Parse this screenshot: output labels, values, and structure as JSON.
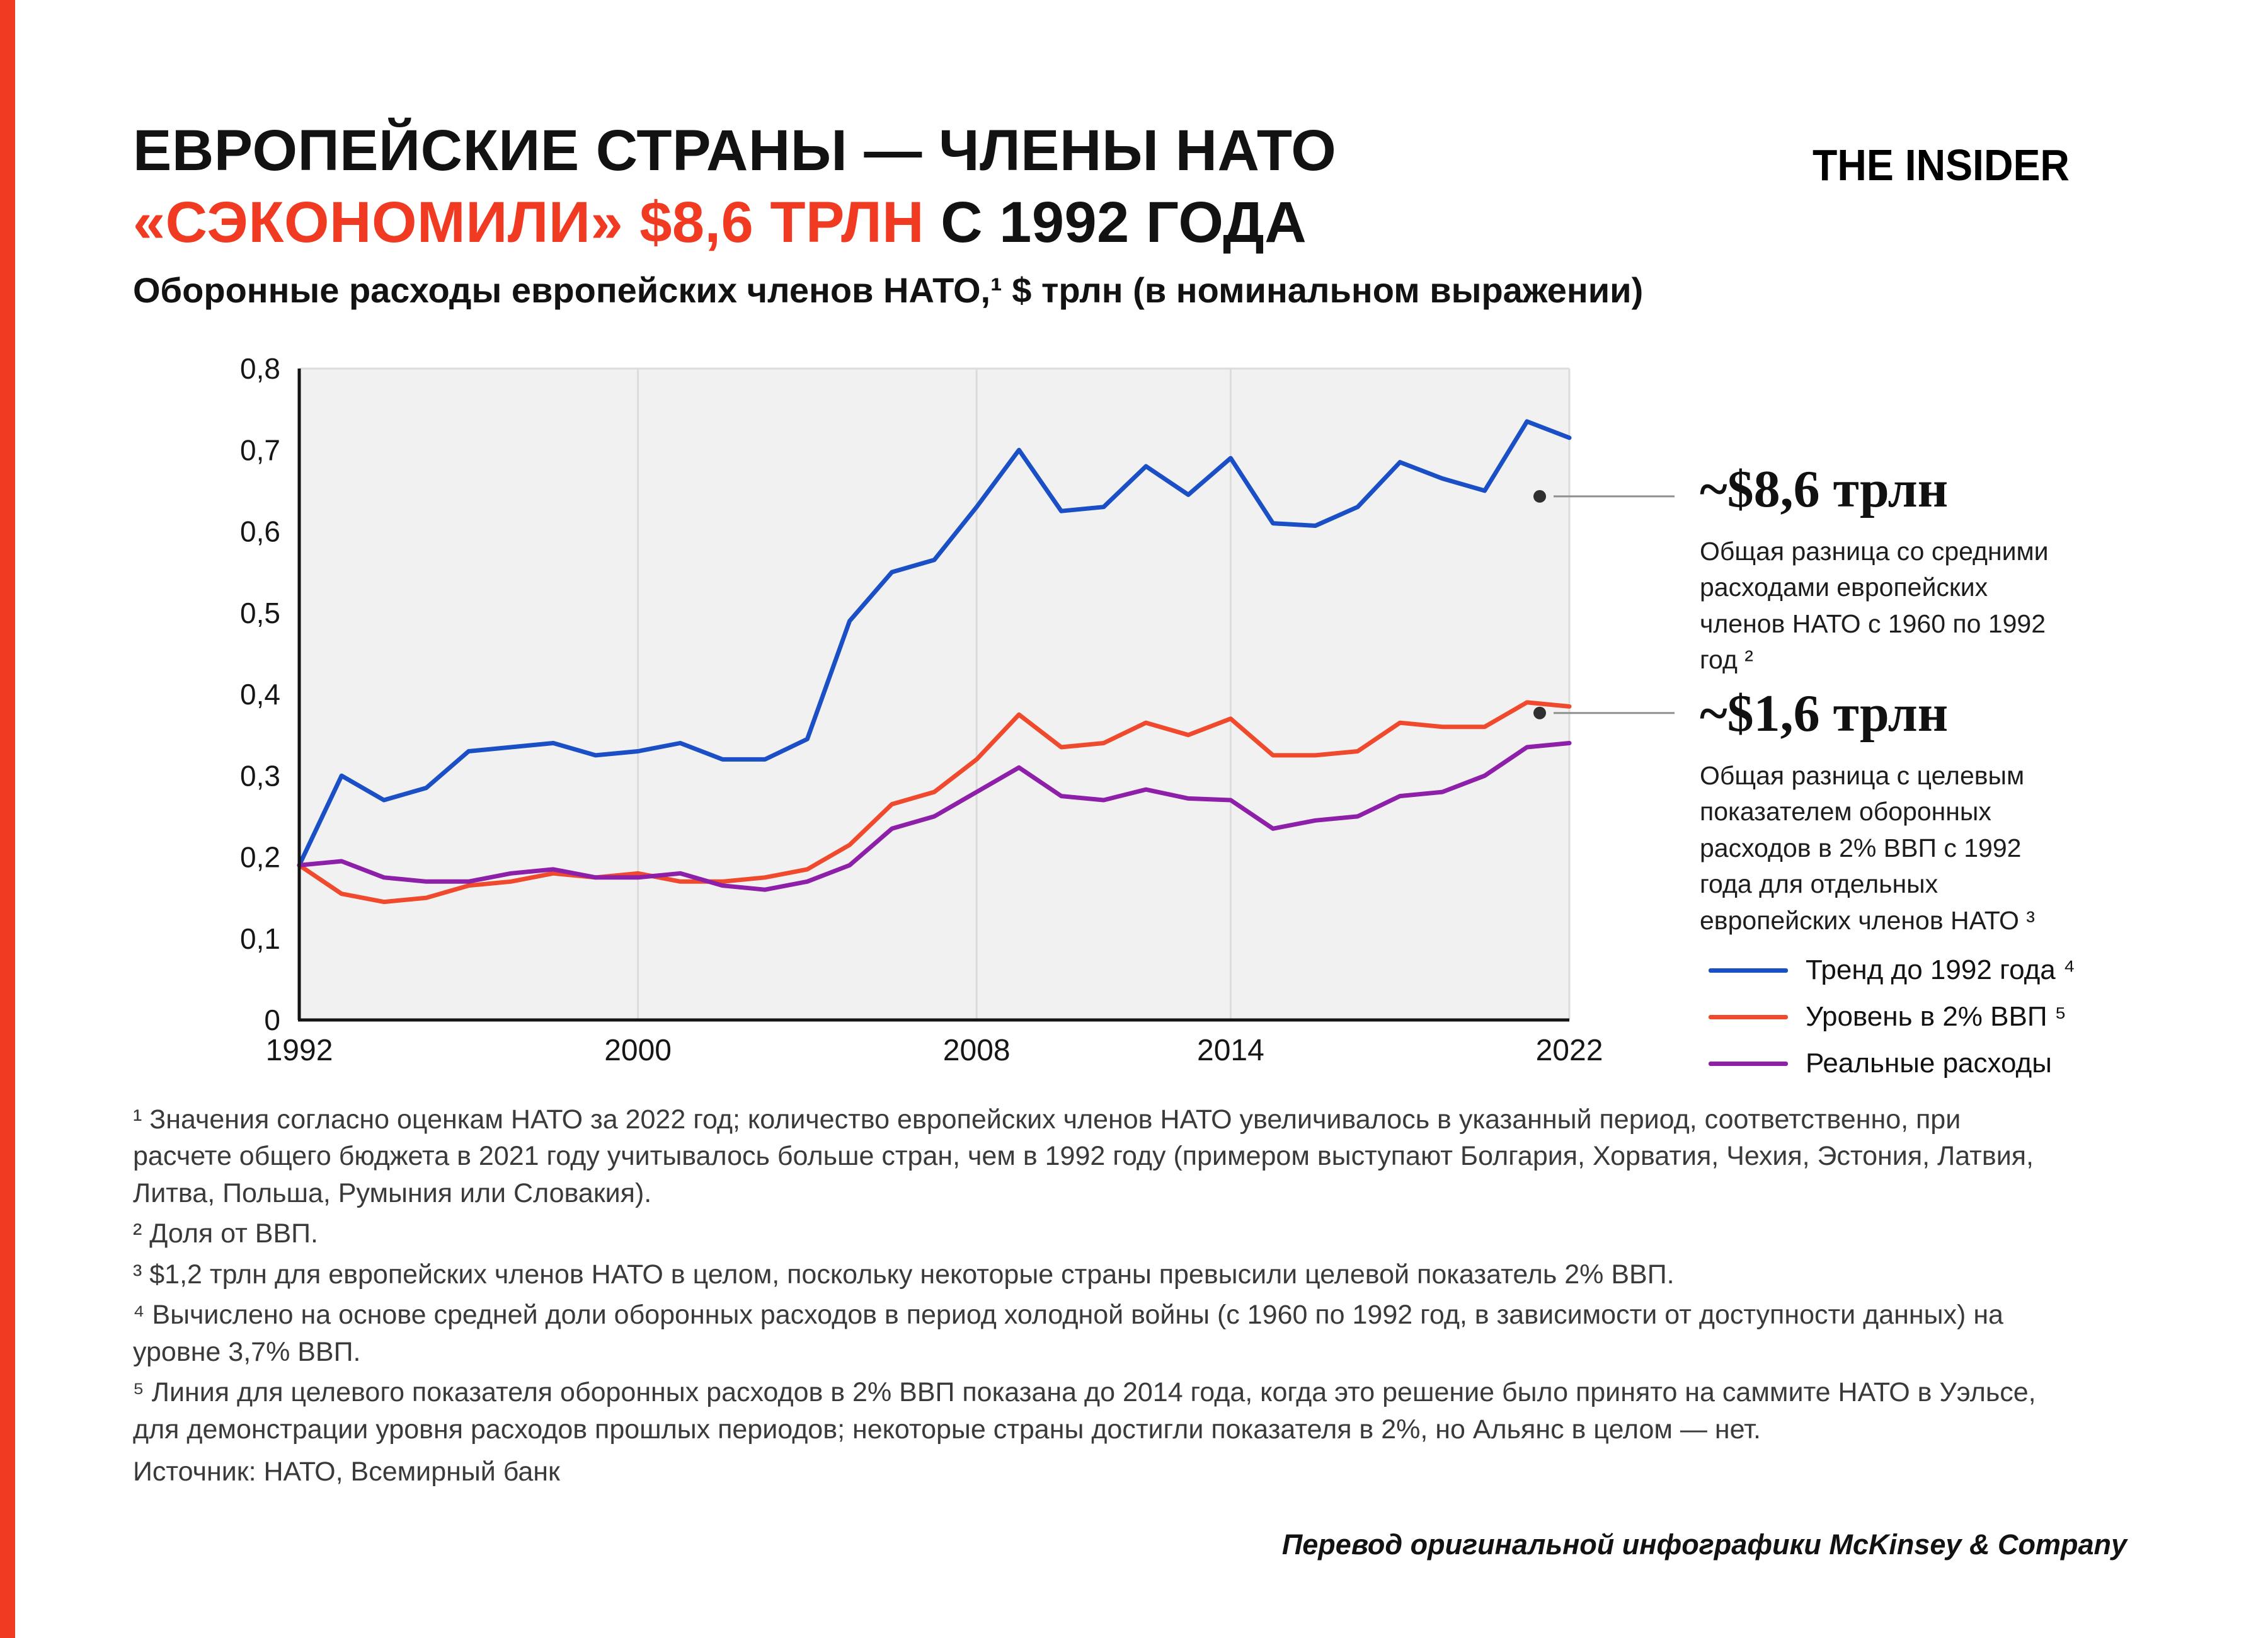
{
  "header": {
    "title_line1": "ЕВРОПЕЙСКИЕ СТРАНЫ — ЧЛЕНЫ НАТО",
    "title_line2_red": "«СЭКОНОМИЛИ» $8,6 ТРЛН",
    "title_line2_black": "С 1992 ГОДА",
    "logo": "THE INSIDER"
  },
  "chart_data": {
    "type": "line",
    "title": "Оборонные расходы европейских членов НАТО,¹ $ трлн (в номинальном выражении)",
    "xlabel": "",
    "ylabel": "$ трлн",
    "xlim": [
      1992,
      2022
    ],
    "ylim": [
      0,
      0.8
    ],
    "plot_bg": "#f1f1f1",
    "grid_color": "#dcdcdc",
    "x": [
      1992,
      1993,
      1994,
      1995,
      1996,
      1997,
      1998,
      1999,
      2000,
      2001,
      2002,
      2003,
      2004,
      2005,
      2006,
      2007,
      2008,
      2009,
      2010,
      2011,
      2012,
      2013,
      2014,
      2015,
      2016,
      2017,
      2018,
      2019,
      2020,
      2021,
      2022
    ],
    "series": [
      {
        "name": "Тренд до 1992 года ⁴",
        "color": "#1b4fc5",
        "values": [
          0.19,
          0.3,
          0.27,
          0.285,
          0.33,
          0.335,
          0.34,
          0.325,
          0.33,
          0.34,
          0.32,
          0.32,
          0.345,
          0.49,
          0.55,
          0.565,
          0.63,
          0.7,
          0.625,
          0.63,
          0.68,
          0.645,
          0.69,
          0.61,
          0.607,
          0.63,
          0.685,
          0.665,
          0.65,
          0.735,
          0.715
        ]
      },
      {
        "name": "Уровень в 2% ВВП ⁵",
        "color": "#f04a2e",
        "values": [
          0.19,
          0.155,
          0.145,
          0.15,
          0.165,
          0.17,
          0.18,
          0.175,
          0.18,
          0.17,
          0.17,
          0.175,
          0.185,
          0.215,
          0.265,
          0.28,
          0.32,
          0.375,
          0.335,
          0.34,
          0.365,
          0.35,
          0.37,
          0.325,
          0.325,
          0.33,
          0.365,
          0.36,
          0.36,
          0.39,
          0.385
        ]
      },
      {
        "name": "Реальные расходы",
        "color": "#8e1fa8",
        "values": [
          0.19,
          0.195,
          0.175,
          0.17,
          0.17,
          0.18,
          0.185,
          0.175,
          0.175,
          0.18,
          0.165,
          0.16,
          0.17,
          0.19,
          0.235,
          0.25,
          0.28,
          0.31,
          0.275,
          0.27,
          0.283,
          0.272,
          0.27,
          0.235,
          0.245,
          0.25,
          0.275,
          0.28,
          0.3,
          0.335,
          0.34
        ]
      }
    ],
    "y_ticks": [
      {
        "v": 0,
        "label": "0"
      },
      {
        "v": 0.1,
        "label": "0,1"
      },
      {
        "v": 0.2,
        "label": "0,2"
      },
      {
        "v": 0.3,
        "label": "0,3"
      },
      {
        "v": 0.4,
        "label": "0,4"
      },
      {
        "v": 0.5,
        "label": "0,5"
      },
      {
        "v": 0.6,
        "label": "0,6"
      },
      {
        "v": 0.7,
        "label": "0,7"
      },
      {
        "v": 0.8,
        "label": "0,8"
      }
    ],
    "x_ticks": [
      {
        "v": 1992,
        "label": "1992"
      },
      {
        "v": 2000,
        "label": "2000"
      },
      {
        "v": 2008,
        "label": "2008"
      },
      {
        "v": 2014,
        "label": "2014"
      },
      {
        "v": 2022,
        "label": "2022"
      }
    ],
    "grid_years": [
      2000,
      2008,
      2014,
      2022
    ],
    "legend_position": "right"
  },
  "annotations": [
    {
      "value_label": "~$8,6 трлн",
      "description": "Общая разница со средними расходами европейских членов НАТО с 1960 по 1992 год ²",
      "dot": {
        "year": 2021.3,
        "value": 0.643
      }
    },
    {
      "value_label": "~$1,6 трлн",
      "description": "Общая разница с целевым показателем оборонных расходов в 2% ВВП с 1992 года для отдельных европейских членов НАТО ³",
      "dot": {
        "year": 2021.3,
        "value": 0.377
      }
    }
  ],
  "legend": {
    "items": [
      {
        "label": "Тренд до 1992 года ⁴",
        "color": "#1b4fc5"
      },
      {
        "label": "Уровень в 2% ВВП ⁵",
        "color": "#f04a2e"
      },
      {
        "label": "Реальные расходы",
        "color": "#8e1fa8"
      }
    ]
  },
  "footnotes": [
    "¹ Значения согласно оценкам НАТО за 2022 год; количество европейских членов НАТО увеличивалось в указанный период, соответственно, при расчете общего бюджета в 2021 году учитывалось больше стран, чем в 1992 году (примером выступают Болгария, Хорватия, Чехия, Эстония, Латвия, Литва, Польша, Румыния или Словакия).",
    "² Доля от ВВП.",
    "³ $1,2 трлн для европейских членов НАТО в целом, поскольку некоторые страны превысили целевой показатель 2% ВВП.",
    "⁴ Вычислено на основе средней доли оборонных расходов в период холодной войны (с 1960 по 1992 год, в зависимости от доступности данных) на уровне 3,7% ВВП.",
    "⁵ Линия для целевого показателя оборонных расходов в 2% ВВП показана до 2014 года, когда это решение было принято на саммите НАТО в Уэльсе, для демонстрации уровня расходов прошлых периодов; некоторые страны достигли показателя в 2%, но Альянс в целом — нет."
  ],
  "source": "Источник: НАТО, Всемирный банк",
  "credit": "Перевод оригинальной инфографики McKinsey & Company"
}
